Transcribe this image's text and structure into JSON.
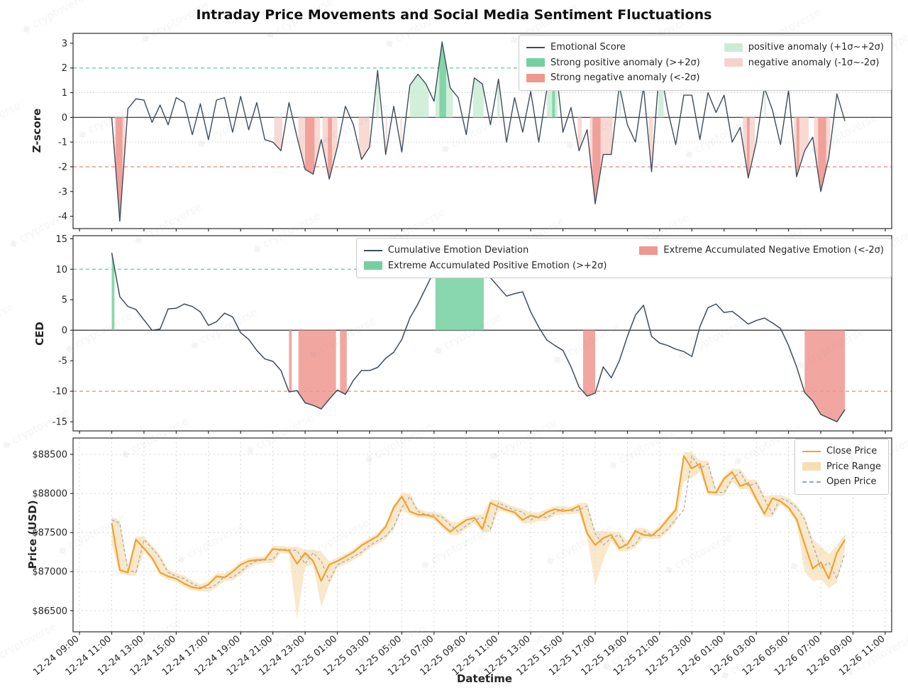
{
  "title": "Intraday Price Movements and Social Media Sentiment Fluctuations",
  "watermark": {
    "text": "cryptoverse",
    "color": "#8a96a3"
  },
  "colors": {
    "line_dark": "#3d4c5c",
    "close_line": "#f0a132",
    "band_fill": "#f7deb2",
    "open_line": "#9aa7b5",
    "pos_strong": "#74d0a0",
    "pos_light": "#c9ecd5",
    "neg_strong": "#f0978f",
    "neg_light": "#f7d2cd",
    "thresh_pos": "#5fc9a0",
    "thresh_neg": "#f08576",
    "sigma_grid": "#bdbdbd",
    "grid": "#d6d6d6",
    "zero_line": "#3f3f3f",
    "spine": "#2b2b2b",
    "text": "#262626"
  },
  "x_axis": {
    "label": "Datetime",
    "xlim": [
      8.6,
      59.4
    ],
    "tick_hours": [
      9,
      11,
      13,
      15,
      17,
      19,
      21,
      23,
      25,
      27,
      29,
      31,
      33,
      35,
      37,
      39,
      41,
      43,
      45,
      47,
      49,
      51,
      53,
      55,
      57,
      59
    ],
    "tick_labels": [
      "12-24 09:00",
      "12-24 11:00",
      "12-24 13:00",
      "12-24 15:00",
      "12-24 17:00",
      "12-24 19:00",
      "12-24 21:00",
      "12-24 23:00",
      "12-25 01:00",
      "12-25 03:00",
      "12-25 05:00",
      "12-25 07:00",
      "12-25 09:00",
      "12-25 11:00",
      "12-25 13:00",
      "12-25 15:00",
      "12-25 17:00",
      "12-25 19:00",
      "12-25 21:00",
      "12-25 23:00",
      "12-26 01:00",
      "12-26 03:00",
      "12-26 05:00",
      "12-26 07:00",
      "12-26 09:00",
      "12-26 11:00"
    ]
  },
  "legends": {
    "zscore": {
      "items": [
        {
          "label": "Emotional Score",
          "swatch": "line",
          "color": "#3d4c5c"
        },
        {
          "label": "Strong positive anomaly (>+2σ)",
          "swatch": "fill",
          "color": "#74d0a0"
        },
        {
          "label": "Strong negative anomaly (<-2σ)",
          "swatch": "fill",
          "color": "#f0978f"
        },
        {
          "label": "positive anomaly (+1σ~+2σ)",
          "swatch": "fill",
          "color": "#c9ecd5"
        },
        {
          "label": "negative anomaly (-1σ~-2σ)",
          "swatch": "fill",
          "color": "#f7d2cd"
        }
      ]
    },
    "ced": {
      "items": [
        {
          "label": "Cumulative Emotion Deviation",
          "swatch": "line",
          "color": "#3d4c5c"
        },
        {
          "label": "Extreme Accumulated Positive Emotion (>+2σ)",
          "swatch": "fill",
          "color": "#74d0a0"
        },
        {
          "label": "Extreme Accumulated Negative Emotion (<-2σ)",
          "swatch": "fill",
          "color": "#f0978f"
        }
      ]
    },
    "price": {
      "items": [
        {
          "label": "Close Price",
          "swatch": "line",
          "color": "#f0a132"
        },
        {
          "label": "Price Range",
          "swatch": "fill",
          "color": "#f7deb2"
        },
        {
          "label": "Open Price",
          "swatch": "dash",
          "color": "#9aa7b5"
        }
      ]
    }
  },
  "chart_data": [
    {
      "type": "line",
      "panel": "zscore",
      "ylabel": "Z-score",
      "ylim": [
        -4.5,
        3.4
      ],
      "yticks": [
        3,
        2,
        1,
        0,
        -1,
        -2,
        -3,
        -4
      ],
      "x_start_hour": 11,
      "x_step_hour": 0.5,
      "x_unit": "hours since 12-24 00:00",
      "thresholds": {
        "strong_pos": 2,
        "pos": 1,
        "neg": -1,
        "strong_neg": -2
      },
      "series": [
        {
          "name": "Emotional Score",
          "values": [
            0,
            -4.2,
            0.35,
            0.75,
            0.7,
            -0.2,
            0.5,
            -0.3,
            0.8,
            0.6,
            -0.7,
            0.55,
            -0.9,
            0.7,
            0.8,
            -0.6,
            0.85,
            -0.5,
            0.6,
            -0.9,
            -1,
            -1.35,
            0.6,
            -0.8,
            -2.1,
            -2.3,
            -0.9,
            -2.5,
            -1.2,
            0.45,
            -0.3,
            -1.7,
            -1.2,
            1.9,
            -1.5,
            0.45,
            -1.4,
            1.3,
            1.75,
            1.35,
            0.65,
            3.05,
            1.2,
            0.8,
            -0.7,
            1.6,
            1.35,
            -0.3,
            1.55,
            -1,
            0.8,
            -0.6,
            1.05,
            -1,
            1.15,
            2.45,
            -0.6,
            0.4,
            -1.35,
            -0.5,
            -3.5,
            -1.5,
            -1.5,
            1.3,
            -0.3,
            -1,
            1.25,
            -2.2,
            2.15,
            0.3,
            -1.1,
            0.9,
            0.9,
            -0.9,
            1,
            0.2,
            0.9,
            -1,
            -0.4,
            -2.45,
            -1,
            1.2,
            0.3,
            -1.1,
            1.1,
            -2.4,
            -1.35,
            -0.8,
            -3,
            -1.6,
            0.95,
            -0.15
          ]
        }
      ]
    },
    {
      "type": "line",
      "panel": "ced",
      "ylabel": "CED",
      "ylim": [
        -16.5,
        15.5
      ],
      "yticks": [
        15,
        10,
        5,
        0,
        -5,
        -10,
        -15
      ],
      "x_start_hour": 11,
      "x_step_hour": 0.5,
      "x_unit": "hours since 12-24 00:00",
      "thresholds": {
        "extreme_pos": 10,
        "extreme_neg": -10
      },
      "series": [
        {
          "name": "Cumulative Emotion Deviation",
          "values": [
            12.7,
            5.5,
            3.9,
            3.4,
            1.7,
            0,
            0.2,
            3.5,
            3.6,
            4.3,
            3.9,
            3,
            0.8,
            1.4,
            2.8,
            2.2,
            -0.4,
            -1.5,
            -3.3,
            -4.7,
            -5.1,
            -6.6,
            -10.1,
            -9.9,
            -11.9,
            -12.3,
            -12.9,
            -11.3,
            -9.8,
            -10.5,
            -8.2,
            -6.6,
            -6.6,
            -6.1,
            -4.6,
            -3.6,
            -1.5,
            2,
            4.3,
            7,
            9.7,
            11.6,
            12.8,
            13.2,
            13.7,
            13.9,
            10.7,
            8.6,
            7.1,
            5.6,
            6,
            6.3,
            3,
            0.5,
            -1.6,
            -2.5,
            -3.3,
            -6,
            -9.3,
            -10.8,
            -10.3,
            -6,
            -7.8,
            -5,
            -1,
            2.5,
            4.1,
            -1,
            -2.1,
            -2.5,
            -3.1,
            -3.5,
            -4.3,
            0.6,
            3.7,
            4.3,
            2.9,
            3.1,
            2.1,
            1,
            1.6,
            2,
            1.2,
            0.3,
            -2.5,
            -6,
            -10.2,
            -11.6,
            -13.8,
            -14.4,
            -15,
            -13
          ]
        }
      ]
    },
    {
      "type": "line+band",
      "panel": "price",
      "ylabel": "Price (USD)",
      "ylim": [
        86230,
        88710
      ],
      "yticks": [
        88500,
        88000,
        87500,
        87000,
        86500
      ],
      "ytick_prefix": "$",
      "x_start_hour": 11,
      "x_step_hour": 0.5,
      "x_unit": "hours since 12-24 00:00",
      "series": [
        {
          "name": "Close Price",
          "values": [
            87620,
            87020,
            86990,
            87410,
            87300,
            87175,
            86990,
            86940,
            86910,
            86845,
            86800,
            86785,
            86835,
            86940,
            86925,
            87000,
            87090,
            87135,
            87150,
            87155,
            87290,
            87280,
            87270,
            87100,
            87240,
            87135,
            86880,
            87090,
            87135,
            87190,
            87250,
            87335,
            87395,
            87455,
            87575,
            87820,
            87960,
            87770,
            87730,
            87725,
            87700,
            87600,
            87510,
            87590,
            87660,
            87690,
            87545,
            87880,
            87830,
            87790,
            87760,
            87660,
            87720,
            87690,
            87760,
            87800,
            87775,
            87790,
            87840,
            87490,
            87340,
            87430,
            87470,
            87300,
            87350,
            87520,
            87470,
            87460,
            87545,
            87670,
            87790,
            88480,
            88320,
            88380,
            88020,
            88010,
            88190,
            88275,
            88095,
            88135,
            87930,
            87740,
            87940,
            87900,
            87820,
            87670,
            87350,
            87040,
            87120,
            86910,
            87240,
            87410
          ]
        },
        {
          "name": "Open Price",
          "values": [
            87660,
            87620,
            87020,
            86990,
            87410,
            87300,
            87175,
            86990,
            86940,
            86910,
            86845,
            86800,
            86785,
            86835,
            86940,
            86925,
            87000,
            87090,
            87135,
            87150,
            87155,
            87290,
            87280,
            87270,
            87100,
            87240,
            87135,
            86880,
            87090,
            87135,
            87190,
            87250,
            87335,
            87395,
            87455,
            87575,
            87820,
            87960,
            87770,
            87730,
            87725,
            87700,
            87600,
            87510,
            87590,
            87660,
            87690,
            87545,
            87880,
            87830,
            87790,
            87760,
            87660,
            87720,
            87690,
            87760,
            87800,
            87775,
            87790,
            87840,
            87490,
            87340,
            87430,
            87470,
            87300,
            87350,
            87520,
            87470,
            87460,
            87545,
            87670,
            87790,
            88480,
            88320,
            88380,
            88020,
            88010,
            88190,
            88275,
            88095,
            88135,
            87930,
            87740,
            87940,
            87900,
            87820,
            87670,
            87350,
            87040,
            87120,
            86910,
            87240
          ]
        }
      ],
      "band": {
        "name": "Price Range",
        "low": [
          87350,
          86980,
          86950,
          86950,
          87260,
          87135,
          86950,
          86900,
          86870,
          86805,
          86760,
          86745,
          86745,
          86795,
          86885,
          86885,
          86960,
          87050,
          87095,
          87110,
          87115,
          87240,
          87230,
          86400,
          87060,
          87095,
          86545,
          86840,
          87050,
          87095,
          87150,
          87210,
          87295,
          87355,
          87415,
          87535,
          87780,
          87730,
          87690,
          87685,
          87660,
          87560,
          87470,
          87470,
          87550,
          87620,
          87505,
          87505,
          87790,
          87750,
          87720,
          87620,
          87620,
          87650,
          87650,
          87720,
          87735,
          87735,
          87750,
          87450,
          86820,
          87150,
          87390,
          87260,
          87260,
          87310,
          87430,
          87420,
          87420,
          87505,
          87630,
          88150,
          88200,
          88280,
          87980,
          87970,
          87970,
          88150,
          88055,
          88055,
          87890,
          87700,
          87700,
          87860,
          87780,
          87630,
          87000,
          86880,
          86900,
          86790,
          86860,
          87290
        ],
        "high": [
          87700,
          87655,
          87060,
          87450,
          87450,
          87340,
          87215,
          87030,
          86980,
          86950,
          86885,
          86840,
          86875,
          86980,
          86980,
          87040,
          87130,
          87175,
          87190,
          87195,
          87330,
          87330,
          87320,
          87320,
          87280,
          87280,
          87260,
          87130,
          87175,
          87230,
          87290,
          87375,
          87435,
          87495,
          87615,
          87860,
          88010,
          88000,
          87810,
          87770,
          87765,
          87740,
          87640,
          87630,
          87700,
          87730,
          87730,
          87920,
          87920,
          87870,
          87830,
          87800,
          87760,
          87760,
          87800,
          87840,
          87840,
          87830,
          87880,
          87880,
          87520,
          87520,
          87510,
          87510,
          87390,
          87560,
          87560,
          87510,
          87585,
          87710,
          87830,
          88530,
          88530,
          88420,
          88420,
          88060,
          88230,
          88315,
          88315,
          88175,
          88175,
          87970,
          87980,
          87980,
          87940,
          87860,
          87710,
          87420,
          87320,
          87230,
          87330,
          87480
        ]
      }
    }
  ]
}
